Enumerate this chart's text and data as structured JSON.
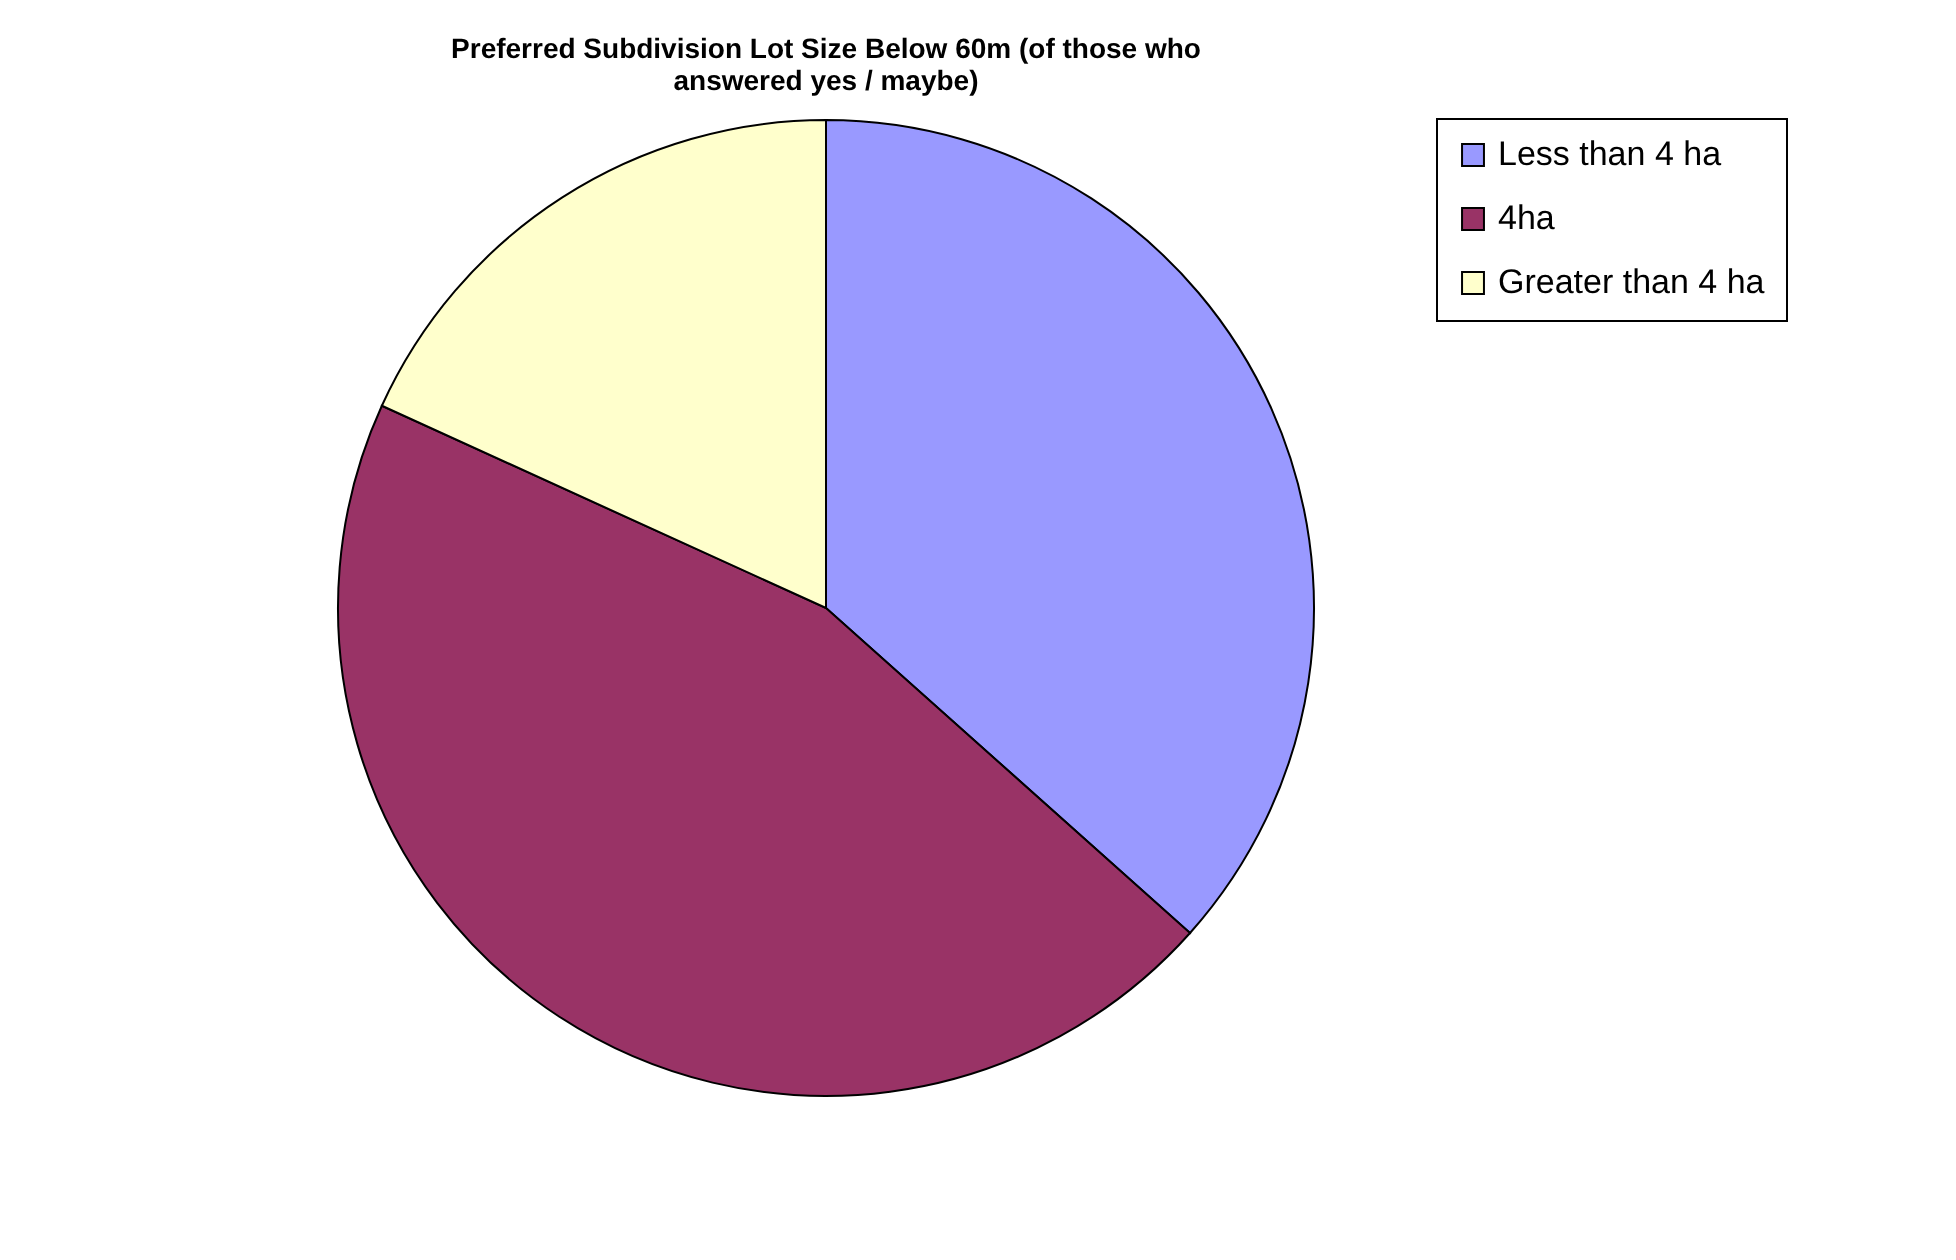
{
  "chart_data": {
    "type": "pie",
    "title": "Preferred Subdivision Lot Size Below 60m (of those who answered yes / maybe)",
    "categories": [
      "Less than 4 ha",
      "4ha",
      "Greater than 4 ha"
    ],
    "values": [
      36.6,
      45.2,
      18.2
    ],
    "colors": [
      "#9999ff",
      "#993366",
      "#ffffcc"
    ],
    "legend": "right"
  }
}
